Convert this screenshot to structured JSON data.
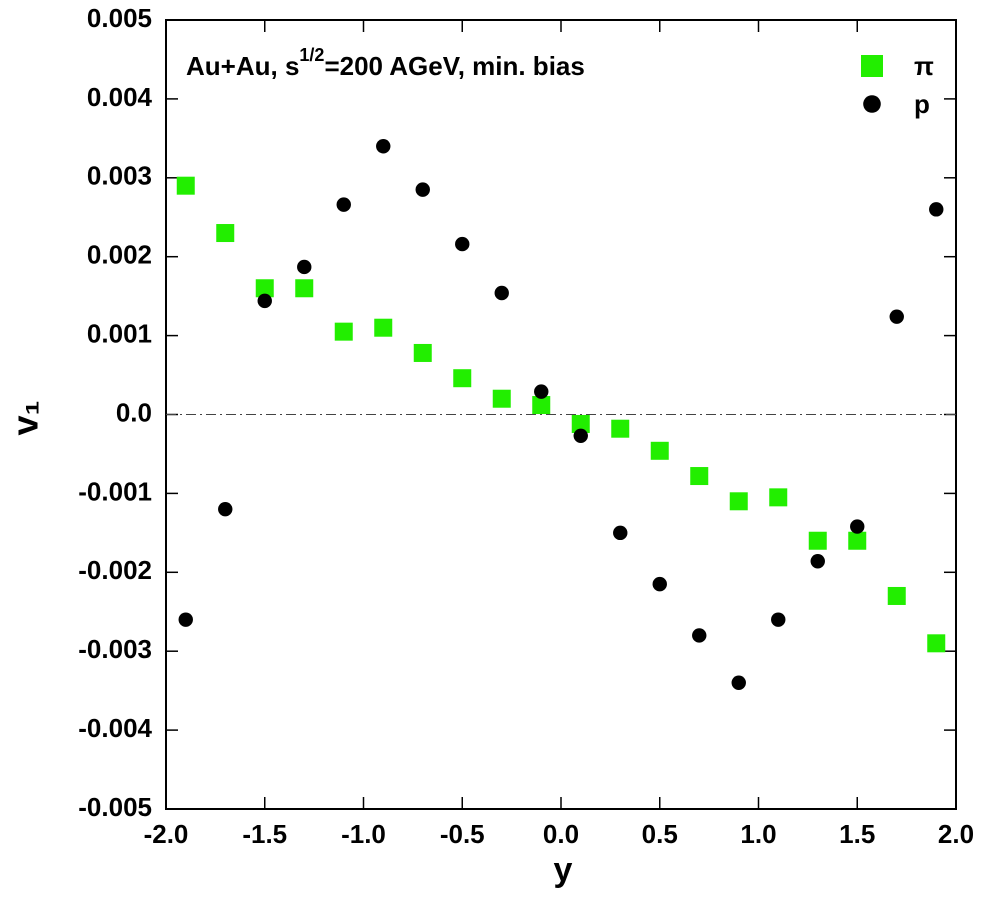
{
  "chart_data": {
    "type": "scatter",
    "annotation": [
      "Au+Au, s",
      "1/2",
      "=200 AGeV, min. bias"
    ],
    "x_label": "y",
    "y_label": "v₁",
    "xlim": [
      -2,
      2
    ],
    "ylim": [
      -0.005,
      0.005
    ],
    "xticks": [
      {
        "value": -2,
        "label": "-2.0"
      },
      -1.5,
      {
        "value": -1,
        "label": "-1.0"
      },
      -0.5,
      {
        "value": 0,
        "label": "0.0"
      },
      0.5,
      {
        "value": 1,
        "label": "1.0"
      },
      1.5,
      {
        "value": 2,
        "label": "2.0"
      }
    ],
    "yticks": [
      -0.005,
      -0.004,
      -0.003,
      -0.002,
      -0.001,
      {
        "value": 0,
        "label": "0.0"
      },
      0.001,
      0.002,
      0.003,
      0.004,
      0.005
    ],
    "zero_line": true,
    "legend": "top-right",
    "series": [
      {
        "name": "π",
        "color": "#22ee00",
        "marker": "square",
        "x": [
          -1.9,
          -1.7,
          -1.5,
          -1.3,
          -1.1,
          -0.9,
          -0.7,
          -0.5,
          -0.3,
          -0.1,
          0.1,
          0.3,
          0.5,
          0.7,
          0.9,
          1.1,
          1.3,
          1.5,
          1.7,
          1.9
        ],
        "values": [
          0.0029,
          0.0023,
          0.0016,
          0.0016,
          0.00105,
          0.0011,
          0.00078,
          0.00046,
          0.0002,
          0.00012,
          -0.00012,
          -0.00018,
          -0.00046,
          -0.00078,
          -0.0011,
          -0.00105,
          -0.0016,
          -0.0016,
          -0.0023,
          -0.0029
        ]
      },
      {
        "name": "p",
        "color": "#000000",
        "marker": "circle",
        "x": [
          -1.9,
          -1.7,
          -1.5,
          -1.3,
          -1.1,
          -0.9,
          -0.7,
          -0.5,
          -0.3,
          -0.1,
          0.1,
          0.3,
          0.5,
          0.7,
          0.9,
          1.1,
          1.3,
          1.5,
          1.7,
          1.9
        ],
        "values": [
          -0.0026,
          -0.0012,
          0.00144,
          0.00187,
          0.00266,
          0.0034,
          0.00285,
          0.00216,
          0.00154,
          0.00029,
          -0.00027,
          -0.0015,
          -0.00215,
          -0.0028,
          -0.0034,
          -0.0026,
          -0.00186,
          -0.00142,
          0.00124,
          0.0026
        ]
      }
    ]
  }
}
